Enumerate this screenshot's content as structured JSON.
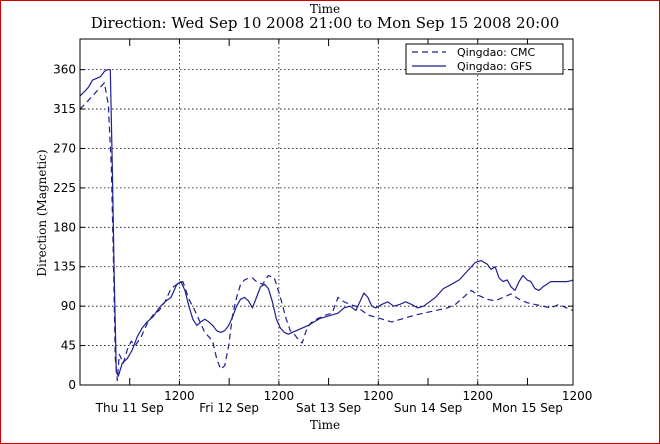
{
  "top_label": "Time",
  "chart_data": {
    "type": "line",
    "title": "Direction: Wed Sep 10 2008 21:00 to Mon Sep 15 2008 20:00",
    "xlabel": "Time",
    "ylabel": "Direction (Magnetic)",
    "xlim": [
      -0.375,
      4.583
    ],
    "ylim": [
      0,
      395
    ],
    "yticks": [
      0,
      45,
      90,
      135,
      180,
      225,
      270,
      315,
      360
    ],
    "xticks_minor": [
      {
        "x": 0.625,
        "label": "1200"
      },
      {
        "x": 1.625,
        "label": "1200"
      },
      {
        "x": 2.625,
        "label": "1200"
      },
      {
        "x": 3.625,
        "label": "1200"
      },
      {
        "x": 4.625,
        "label": "1200"
      }
    ],
    "xticks_major": [
      {
        "x": 0.125,
        "label": "Thu 11 Sep"
      },
      {
        "x": 1.125,
        "label": "Fri 12 Sep"
      },
      {
        "x": 2.125,
        "label": "Sat 13 Sep"
      },
      {
        "x": 3.125,
        "label": "Sun 14 Sep"
      },
      {
        "x": 4.125,
        "label": "Mon 15 Sep"
      }
    ],
    "grid": true,
    "legend_position": "top-right",
    "colors": {
      "series": "#1f1f8f"
    },
    "series": [
      {
        "name": "Qingdao: CMC",
        "style": "dashed",
        "x": [
          -0.375,
          -0.29,
          -0.21,
          -0.17,
          -0.13,
          -0.09,
          -0.06,
          -0.04,
          -0.02,
          0.0,
          0.02,
          0.06,
          0.1,
          0.14,
          0.18,
          0.24,
          0.3,
          0.36,
          0.42,
          0.48,
          0.54,
          0.6,
          0.66,
          0.72,
          0.78,
          0.84,
          0.88,
          0.92,
          0.96,
          1.0,
          1.04,
          1.08,
          1.12,
          1.16,
          1.2,
          1.24,
          1.28,
          1.32,
          1.36,
          1.4,
          1.46,
          1.52,
          1.58,
          1.64,
          1.7,
          1.74,
          1.78,
          1.82,
          1.86,
          1.9,
          1.94,
          1.98,
          2.02,
          2.06,
          2.1,
          2.16,
          2.22,
          2.28,
          2.34,
          2.4,
          2.46,
          2.52,
          2.58,
          2.64,
          2.7,
          2.76,
          2.82,
          2.88,
          2.94,
          3.0,
          3.08,
          3.16,
          3.24,
          3.32,
          3.4,
          3.48,
          3.56,
          3.64,
          3.72,
          3.8,
          3.88,
          3.96,
          4.04,
          4.12,
          4.2,
          4.28,
          4.36,
          4.44,
          4.52,
          4.583
        ],
        "y": [
          315,
          325,
          335,
          340,
          345,
          320,
          250,
          150,
          30,
          5,
          35,
          25,
          40,
          50,
          45,
          55,
          70,
          80,
          85,
          95,
          110,
          115,
          118,
          98,
          85,
          70,
          60,
          55,
          50,
          30,
          18,
          22,
          45,
          80,
          100,
          115,
          120,
          122,
          122,
          118,
          115,
          125,
          122,
          100,
          75,
          62,
          58,
          52,
          48,
          62,
          70,
          74,
          76,
          78,
          80,
          82,
          100,
          95,
          92,
          90,
          85,
          80,
          78,
          76,
          74,
          72,
          74,
          76,
          78,
          80,
          82,
          84,
          86,
          88,
          92,
          100,
          108,
          102,
          98,
          96,
          100,
          104,
          98,
          94,
          92,
          90,
          88,
          92,
          88,
          85
        ]
      },
      {
        "name": "Qingdao: GFS",
        "style": "solid",
        "x": [
          -0.375,
          -0.33,
          -0.29,
          -0.25,
          -0.21,
          -0.17,
          -0.13,
          -0.1,
          -0.07,
          -0.05,
          -0.03,
          -0.01,
          0.01,
          0.05,
          0.1,
          0.15,
          0.2,
          0.25,
          0.3,
          0.36,
          0.42,
          0.48,
          0.54,
          0.6,
          0.64,
          0.68,
          0.72,
          0.76,
          0.8,
          0.84,
          0.88,
          0.92,
          0.96,
          1.0,
          1.04,
          1.08,
          1.12,
          1.16,
          1.2,
          1.24,
          1.28,
          1.32,
          1.36,
          1.4,
          1.44,
          1.48,
          1.52,
          1.56,
          1.6,
          1.64,
          1.68,
          1.72,
          1.76,
          1.8,
          1.86,
          1.92,
          1.98,
          2.04,
          2.1,
          2.16,
          2.22,
          2.28,
          2.34,
          2.4,
          2.44,
          2.48,
          2.52,
          2.56,
          2.6,
          2.66,
          2.72,
          2.78,
          2.84,
          2.9,
          2.96,
          3.02,
          3.08,
          3.14,
          3.2,
          3.28,
          3.36,
          3.44,
          3.52,
          3.6,
          3.66,
          3.72,
          3.76,
          3.8,
          3.84,
          3.88,
          3.92,
          3.96,
          4.0,
          4.04,
          4.08,
          4.12,
          4.16,
          4.2,
          4.24,
          4.28,
          4.32,
          4.36,
          4.4,
          4.44,
          4.48,
          4.52,
          4.56,
          4.583
        ],
        "y": [
          330,
          335,
          340,
          348,
          350,
          352,
          358,
          360,
          360,
          250,
          120,
          15,
          10,
          25,
          30,
          40,
          55,
          65,
          72,
          78,
          88,
          95,
          100,
          115,
          118,
          108,
          90,
          75,
          68,
          72,
          75,
          72,
          68,
          62,
          60,
          62,
          68,
          78,
          90,
          98,
          100,
          96,
          88,
          100,
          112,
          115,
          110,
          95,
          75,
          65,
          60,
          58,
          60,
          62,
          65,
          68,
          72,
          76,
          78,
          80,
          82,
          88,
          90,
          85,
          95,
          105,
          100,
          90,
          88,
          92,
          95,
          90,
          92,
          95,
          92,
          88,
          90,
          95,
          100,
          110,
          115,
          120,
          130,
          140,
          142,
          138,
          132,
          135,
          122,
          118,
          120,
          112,
          108,
          118,
          125,
          120,
          118,
          110,
          108,
          112,
          115,
          118,
          118,
          118,
          118,
          118,
          119,
          120
        ]
      }
    ]
  }
}
